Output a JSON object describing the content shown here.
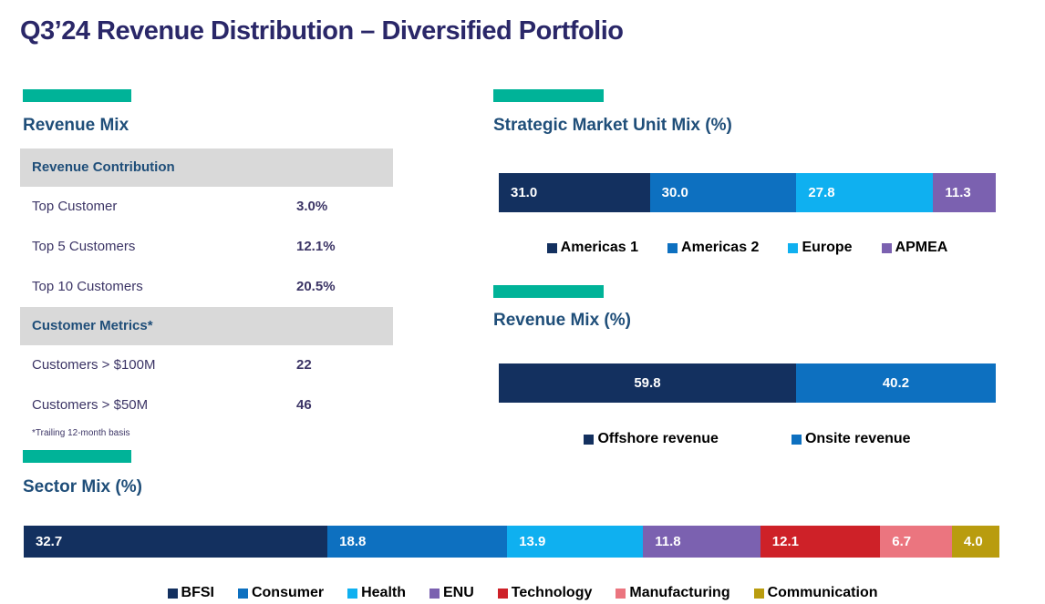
{
  "title": "Q3’24 Revenue Distribution – Diversified Portfolio",
  "colors": {
    "accent_teal": "#00B398",
    "title_text": "#2A2768",
    "heading_text": "#1F4E79",
    "table_text": "#3C3566",
    "table_band_bg": "#D9D9D9",
    "navy": "#13305F",
    "blue": "#0D70C0",
    "cyan": "#0FB0F0",
    "purple": "#7B61B0",
    "red": "#CE2128",
    "pink": "#EB757F",
    "olive": "#B99C0F"
  },
  "revenue_table": {
    "heading": "Revenue Mix",
    "sections": [
      {
        "header": "Revenue Contribution",
        "rows": [
          {
            "label": "Top Customer",
            "value": "3.0%"
          },
          {
            "label": "Top 5 Customers",
            "value": "12.1%"
          },
          {
            "label": "Top 10 Customers",
            "value": "20.5%"
          }
        ]
      },
      {
        "header": "Customer Metrics*",
        "rows": [
          {
            "label": "Customers > $100M",
            "value": "22"
          },
          {
            "label": "Customers > $50M",
            "value": "46"
          }
        ]
      }
    ],
    "footnote": "*Trailing 12-month basis"
  },
  "chart_data": [
    {
      "type": "bar",
      "orientation": "horizontal-stacked",
      "title": "Strategic Market Unit Mix (%)",
      "xlim": [
        0,
        100
      ],
      "value_labels": "inside-left",
      "legend_position": "bottom-center",
      "segments": [
        {
          "label": "Americas 1",
          "value": 31.0,
          "color": "#13305F"
        },
        {
          "label": "Americas 2",
          "value": 30.0,
          "color": "#0D70C0"
        },
        {
          "label": "Europe",
          "value": 27.8,
          "color": "#0FB0F0"
        },
        {
          "label": "APMEA",
          "value": 11.3,
          "color": "#7B61B0"
        }
      ]
    },
    {
      "type": "bar",
      "orientation": "horizontal-stacked",
      "title": "Revenue Mix (%)",
      "xlim": [
        0,
        100
      ],
      "value_labels": "inside-center",
      "legend_position": "bottom-center",
      "segments": [
        {
          "label": "Offshore revenue",
          "value": 59.8,
          "color": "#13305F"
        },
        {
          "label": "Onsite revenue",
          "value": 40.2,
          "color": "#0D70C0"
        }
      ]
    },
    {
      "type": "bar",
      "orientation": "horizontal-stacked",
      "title": "Sector Mix (%)",
      "xlim": [
        0,
        100
      ],
      "value_labels": "inside-left",
      "legend_position": "bottom-center",
      "segments": [
        {
          "label": "BFSI",
          "value": 32.7,
          "color": "#13305F"
        },
        {
          "label": "Consumer",
          "value": 18.8,
          "color": "#0D70C0"
        },
        {
          "label": "Health",
          "value": 13.9,
          "color": "#0FB0F0"
        },
        {
          "label": "ENU",
          "value": 11.8,
          "color": "#7B61B0"
        },
        {
          "label": "Technology",
          "value": 12.1,
          "color": "#CE2128"
        },
        {
          "label": "Manufacturing",
          "value": 6.7,
          "color": "#EB757F"
        },
        {
          "label": "Communication",
          "value": 4.0,
          "color": "#B99C0F"
        }
      ]
    }
  ]
}
